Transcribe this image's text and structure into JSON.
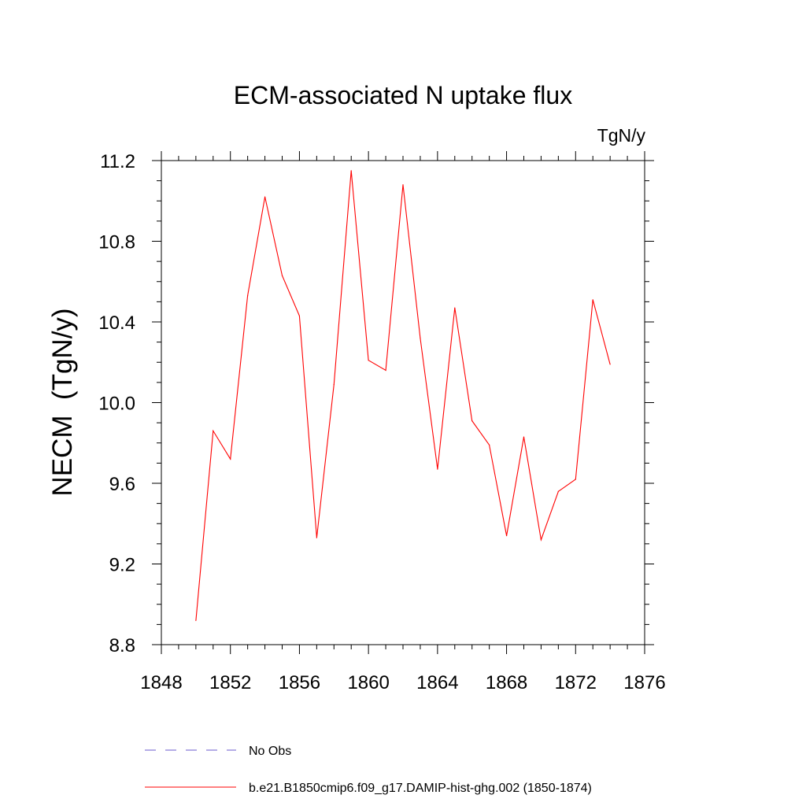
{
  "chart_data": {
    "type": "line",
    "title": "ECM-associated N uptake flux",
    "units_label": "TgN/y",
    "ylabel": "NECM  (TgN/y)",
    "xlabel": "",
    "xlim": [
      1848,
      1876
    ],
    "ylim": [
      8.8,
      11.2
    ],
    "x_ticks": [
      1848,
      1852,
      1856,
      1860,
      1864,
      1868,
      1872,
      1876
    ],
    "x_tick_labels": [
      "1848",
      "1852",
      "1856",
      "1860",
      "1864",
      "1868",
      "1872",
      "1876"
    ],
    "y_ticks": [
      8.8,
      9.2,
      9.6,
      10.0,
      10.4,
      10.8,
      11.2
    ],
    "y_tick_labels": [
      "8.8",
      "9.2",
      "9.6",
      "10.0",
      "10.4",
      "10.8",
      "11.2"
    ],
    "grid": false,
    "legend_position": "bottom",
    "series": [
      {
        "name": "b.e21.B1850cmip6.f09_g17.DAMIP-hist-ghg.002 (1850-1874)",
        "color": "#ff0000",
        "dash": "solid",
        "x": [
          1850,
          1851,
          1852,
          1853,
          1854,
          1855,
          1856,
          1857,
          1858,
          1859,
          1860,
          1861,
          1862,
          1863,
          1864,
          1865,
          1866,
          1867,
          1868,
          1869,
          1870,
          1871,
          1872,
          1873,
          1874
        ],
        "y": [
          8.92,
          9.86,
          9.72,
          10.53,
          11.02,
          10.63,
          10.43,
          9.33,
          10.09,
          11.15,
          10.21,
          10.16,
          11.08,
          10.32,
          9.67,
          10.47,
          9.91,
          9.79,
          9.34,
          9.83,
          9.32,
          9.56,
          9.62,
          10.51,
          10.19
        ]
      }
    ],
    "legend": [
      {
        "label": "No Obs",
        "color": "#6a5acd",
        "dash": "dashed"
      },
      {
        "label": "b.e21.B1850cmip6.f09_g17.DAMIP-hist-ghg.002 (1850-1874)",
        "color": "#ff0000",
        "dash": "solid"
      }
    ]
  }
}
